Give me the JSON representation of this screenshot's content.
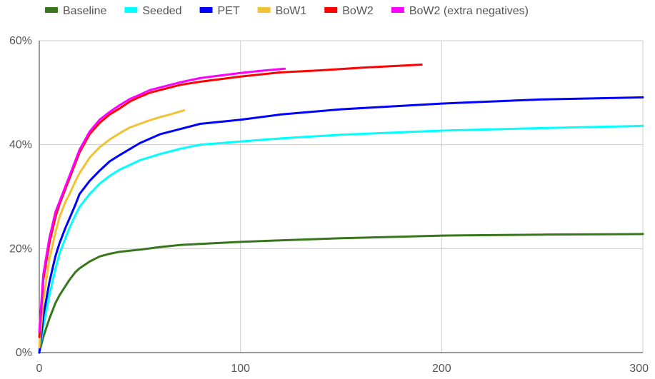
{
  "chart_data": {
    "type": "line",
    "title": "",
    "xlabel": "",
    "ylabel": "",
    "xlim": [
      0,
      300
    ],
    "ylim": [
      0,
      60
    ],
    "x_ticks": [
      0,
      100,
      200,
      300
    ],
    "y_ticks": [
      0,
      20,
      40,
      60
    ],
    "x_tick_labels": [
      "0",
      "100",
      "200",
      "300"
    ],
    "y_tick_labels": [
      "0%",
      "20%",
      "40%",
      "60%"
    ],
    "grid": true,
    "legend_position": "top",
    "series": [
      {
        "name": "Baseline",
        "color": "#38761d",
        "x": [
          0,
          2,
          5,
          8,
          10,
          13,
          15,
          18,
          20,
          25,
          30,
          35,
          40,
          50,
          60,
          70,
          80,
          100,
          120,
          150,
          200,
          250,
          300
        ],
        "y": [
          0,
          3,
          6.5,
          9.5,
          11,
          12.8,
          14,
          15.5,
          16.2,
          17.5,
          18.5,
          19,
          19.4,
          19.8,
          20.3,
          20.7,
          20.9,
          21.3,
          21.6,
          22,
          22.5,
          22.7,
          22.8
        ]
      },
      {
        "name": "Seeded",
        "color": "#00ffff",
        "x": [
          0,
          2,
          5,
          8,
          10,
          13,
          15,
          18,
          20,
          25,
          30,
          35,
          40,
          50,
          60,
          70,
          80,
          100,
          120,
          150,
          200,
          250,
          300
        ],
        "y": [
          0,
          5,
          11,
          16,
          19,
          22,
          24,
          26.5,
          28,
          30.5,
          32.5,
          34,
          35.2,
          37,
          38.2,
          39.2,
          40,
          40.6,
          41.2,
          41.9,
          42.7,
          43.2,
          43.6
        ]
      },
      {
        "name": "PET",
        "color": "#0000ff",
        "x": [
          0,
          2,
          5,
          8,
          10,
          13,
          15,
          18,
          20,
          25,
          30,
          35,
          40,
          50,
          60,
          70,
          80,
          100,
          120,
          150,
          200,
          250,
          300
        ],
        "y": [
          0,
          7,
          13.5,
          18.5,
          21,
          24,
          25.8,
          28.5,
          30.5,
          33,
          35,
          36.8,
          38,
          40.3,
          42,
          43,
          44,
          44.8,
          45.8,
          46.8,
          47.9,
          48.7,
          49.1
        ]
      },
      {
        "name": "BoW1",
        "color": "#f1c232",
        "x": [
          0,
          2,
          5,
          8,
          10,
          13,
          15,
          18,
          20,
          25,
          30,
          35,
          40,
          45,
          50,
          55,
          60,
          65,
          70,
          72
        ],
        "y": [
          1,
          10,
          18,
          23,
          26,
          29,
          30.5,
          33,
          34.5,
          37.5,
          39.5,
          41,
          42.2,
          43.3,
          44,
          44.7,
          45.3,
          45.8,
          46.4,
          46.6
        ]
      },
      {
        "name": "BoW2",
        "color": "#ff0000",
        "x": [
          0,
          2,
          5,
          8,
          10,
          13,
          15,
          18,
          20,
          25,
          30,
          35,
          40,
          45,
          50,
          55,
          60,
          70,
          80,
          90,
          100,
          120,
          140,
          160,
          180,
          190
        ],
        "y": [
          3,
          14,
          21,
          26,
          28.5,
          31.5,
          33.5,
          36.5,
          38.5,
          42,
          44.2,
          45.8,
          47,
          48.3,
          49.2,
          50,
          50.5,
          51.5,
          52.1,
          52.6,
          53.1,
          53.9,
          54.3,
          54.8,
          55.2,
          55.4
        ]
      },
      {
        "name": "BoW2 (extra negatives)",
        "color": "#ff00ff",
        "x": [
          0,
          2,
          5,
          8,
          10,
          13,
          15,
          18,
          20,
          25,
          30,
          35,
          40,
          45,
          50,
          55,
          60,
          70,
          80,
          90,
          100,
          110,
          122
        ],
        "y": [
          4,
          15,
          22,
          27,
          29,
          32,
          34,
          37,
          39,
          42.5,
          44.8,
          46.3,
          47.6,
          48.8,
          49.6,
          50.5,
          51,
          52,
          52.8,
          53.3,
          53.8,
          54.2,
          54.6
        ]
      }
    ]
  }
}
